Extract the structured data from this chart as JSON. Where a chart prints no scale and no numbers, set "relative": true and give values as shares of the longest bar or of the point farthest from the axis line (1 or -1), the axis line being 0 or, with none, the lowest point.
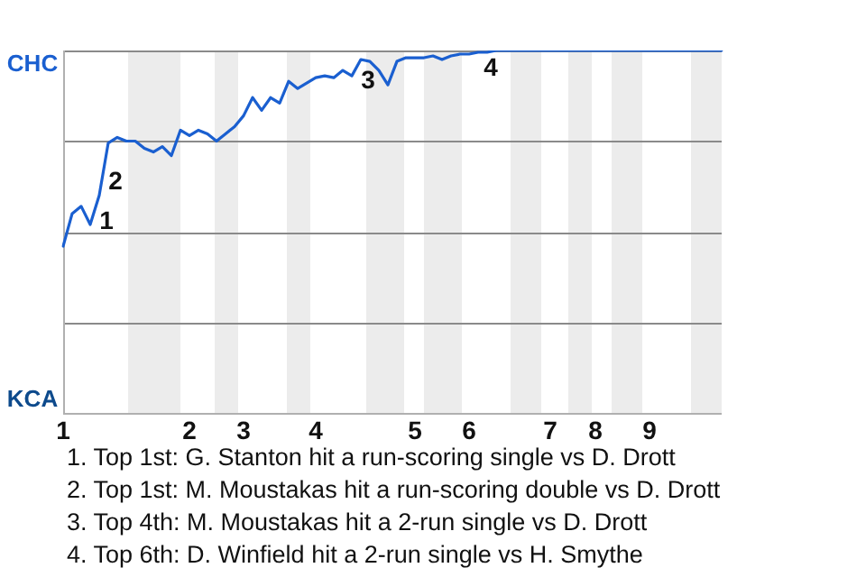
{
  "chart_data": {
    "type": "line",
    "relative": true,
    "categories": [
      "1",
      null,
      null,
      null,
      null,
      null,
      null,
      null,
      null,
      null,
      null,
      null,
      null,
      null,
      "2",
      null,
      null,
      null,
      null,
      null,
      "3",
      null,
      null,
      null,
      null,
      null,
      null,
      null,
      "4",
      null,
      null,
      null,
      null,
      null,
      null,
      null,
      null,
      null,
      null,
      "5",
      null,
      null,
      null,
      null,
      null,
      "6",
      null,
      null,
      null,
      null,
      null,
      null,
      null,
      null,
      "7",
      null,
      null,
      null,
      null,
      "8",
      null,
      null,
      null,
      null,
      null,
      "9",
      null,
      null,
      null,
      null,
      null,
      null,
      null,
      null
    ],
    "series": [
      {
        "color": "#1a5fd0",
        "values": [
          0.46,
          0.55,
          0.57,
          0.52,
          0.6,
          0.745,
          0.76,
          0.75,
          0.75,
          0.73,
          0.72,
          0.735,
          0.71,
          0.78,
          0.765,
          0.78,
          0.77,
          0.75,
          0.77,
          0.79,
          0.82,
          0.87,
          0.835,
          0.87,
          0.855,
          0.915,
          0.895,
          0.91,
          0.925,
          0.93,
          0.925,
          0.945,
          0.93,
          0.975,
          0.97,
          0.945,
          0.905,
          0.97,
          0.98,
          0.98,
          0.98,
          0.985,
          0.975,
          0.985,
          0.99,
          0.99,
          0.995,
          0.995,
          1,
          1,
          1,
          1,
          1,
          1,
          1,
          1,
          1,
          1,
          1,
          1,
          1,
          1,
          1,
          1,
          1,
          1,
          1,
          1,
          1,
          1,
          1,
          1,
          1,
          1
        ]
      }
    ],
    "grid": "y",
    "marker": "none",
    "annotations": [
      "CHC",
      "KCA",
      "1",
      "2",
      "3",
      "4",
      "1. Top 1st: G. Stanton hit a run-scoring single vs D. Drott",
      "2. Top 1st: M. Moustakas hit a run-scoring double vs D. Drott",
      "3. Top 4th: M. Moustakas hit a 2-run single vs D. Drott",
      "4. Top 6th: D. Winfield hit a 2-run single vs H. Smythe"
    ]
  }
}
